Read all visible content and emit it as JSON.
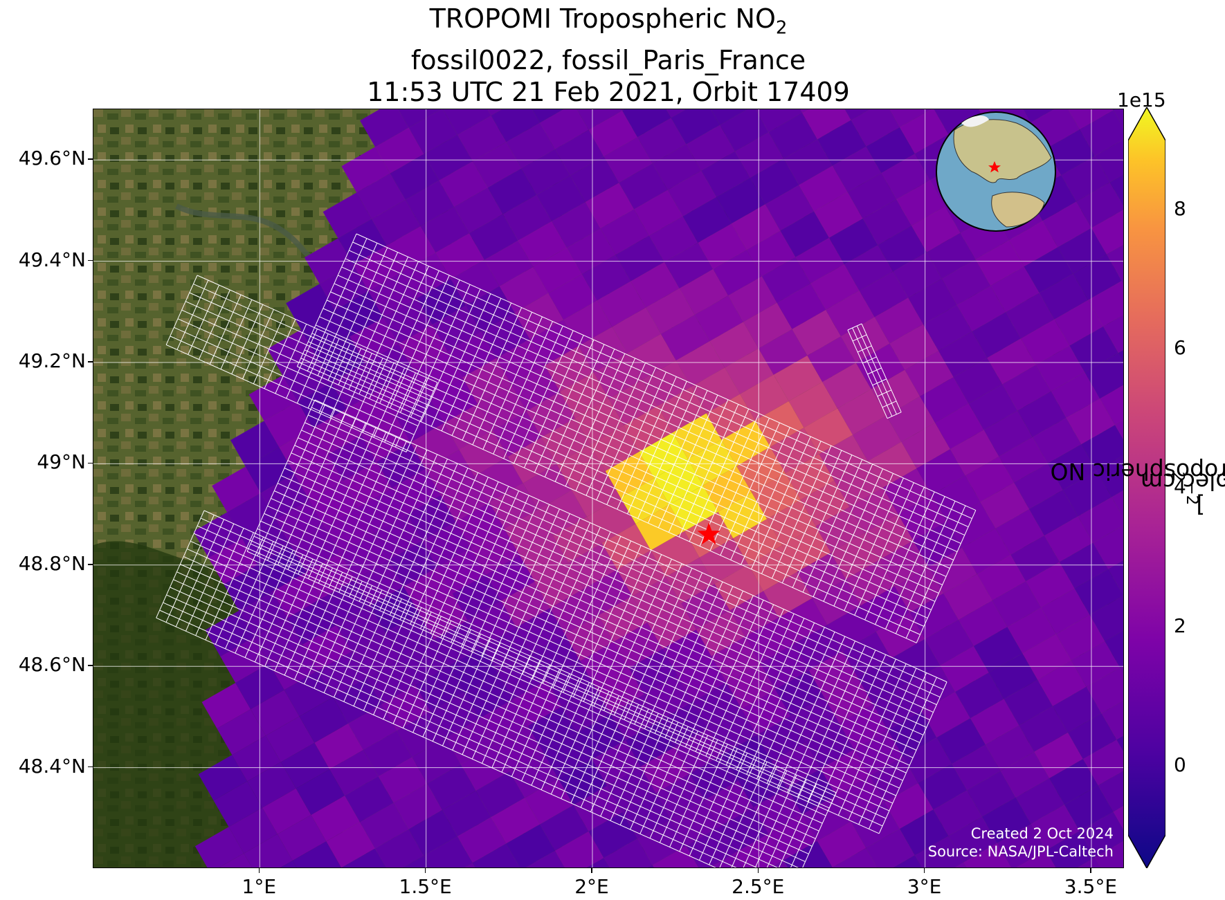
{
  "title": {
    "line1_prefix": "TROPOMI Tropospheric NO",
    "line1_sub": "2",
    "line2": "fossil0022, fossil_Paris_France",
    "line3": "11:53 UTC 21 Feb 2021, Orbit 17409"
  },
  "map": {
    "lon_range": [
      0.5,
      3.6
    ],
    "lat_range": [
      48.2,
      49.7
    ],
    "x_ticks": [
      "1°E",
      "1.5°E",
      "2°E",
      "2.5°E",
      "3°E",
      "3.5°E"
    ],
    "x_tick_values": [
      1.0,
      1.5,
      2.0,
      2.5,
      3.0,
      3.5
    ],
    "y_ticks": [
      "49.6°N",
      "49.4°N",
      "49.2°N",
      "49°N",
      "48.8°N",
      "48.6°N",
      "48.4°N"
    ],
    "y_tick_values": [
      49.6,
      49.4,
      49.2,
      49.0,
      48.8,
      48.6,
      48.4
    ],
    "gridlines": true,
    "basemap": "satellite imagery",
    "site_marker": {
      "icon": "red-star-icon",
      "lon": 2.35,
      "lat": 48.86,
      "color": "#ff0000"
    },
    "inset": {
      "type": "orthographic globe",
      "placement": "top-right",
      "marker_color": "#ff0000"
    },
    "credits": {
      "created": "Created 2 Oct 2024",
      "source": "Source: NASA/JPL-Caltech"
    }
  },
  "colorbar": {
    "colormap": "plasma",
    "min": -1,
    "max": 9,
    "exponent_label": "1e15",
    "ticks": [
      "0",
      "2",
      "4",
      "6",
      "8"
    ],
    "tick_values": [
      0,
      2,
      4,
      6,
      8
    ],
    "label_prefix": "TROPOMI Tropospheric NO",
    "label_sub": "2",
    "label_suffix": " [molec cm",
    "label_sup": "−2",
    "label_end": "]",
    "extend": "both"
  },
  "colors": {
    "land_dark": "#2f3d1c",
    "land_light": "#6b6a3a",
    "star": "#ff0000",
    "grid": "#ffffff"
  }
}
